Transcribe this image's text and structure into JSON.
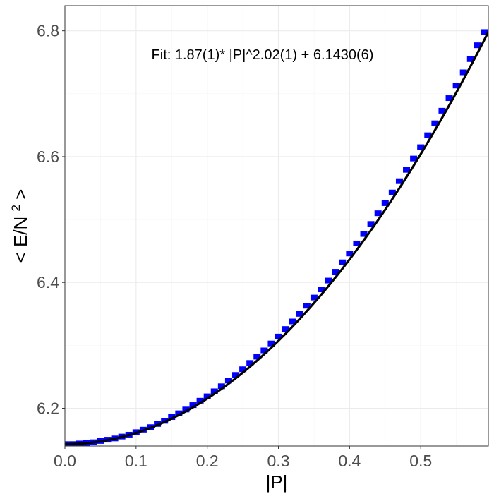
{
  "chart_data": {
    "type": "scatter",
    "annotation": "Fit: 1.87(1)* |P|^2.02(1) + 6.1430(6)",
    "xlabel": "|P|",
    "ylabel": {
      "prefix": "< E/N",
      "superscript": "2",
      "suffix": " >"
    },
    "xlim": [
      0.0,
      0.595
    ],
    "ylim": [
      6.14,
      6.84
    ],
    "x_ticks": [
      0.0,
      0.1,
      0.2,
      0.3,
      0.4,
      0.5
    ],
    "x_tick_labels": [
      "0.0",
      "0.1",
      "0.2",
      "0.3",
      "0.4",
      "0.5"
    ],
    "y_ticks": [
      6.2,
      6.4,
      6.6,
      6.8
    ],
    "y_tick_labels": [
      "6.2",
      "6.4",
      "6.6",
      "6.8"
    ],
    "grid": true,
    "legend": "none",
    "series": [
      {
        "kind": "data",
        "color": "#0000ff",
        "x": [
          0.0,
          0.01,
          0.02,
          0.03,
          0.04,
          0.05,
          0.06,
          0.07,
          0.08,
          0.09,
          0.1,
          0.11,
          0.12,
          0.13,
          0.14,
          0.15,
          0.16,
          0.17,
          0.18,
          0.19,
          0.2,
          0.21,
          0.22,
          0.23,
          0.24,
          0.25,
          0.26,
          0.27,
          0.28,
          0.29,
          0.3,
          0.31,
          0.32,
          0.33,
          0.34,
          0.35,
          0.36,
          0.37,
          0.38,
          0.39,
          0.4,
          0.41,
          0.42,
          0.43,
          0.44,
          0.45,
          0.46,
          0.47,
          0.48,
          0.49,
          0.5,
          0.51,
          0.52,
          0.53,
          0.54,
          0.55,
          0.56,
          0.57,
          0.58,
          0.59
        ],
        "y": [
          6.143,
          6.143,
          6.144,
          6.145,
          6.146,
          6.148,
          6.15,
          6.152,
          6.155,
          6.158,
          6.162,
          6.166,
          6.17,
          6.175,
          6.18,
          6.186,
          6.192,
          6.198,
          6.205,
          6.212,
          6.219,
          6.227,
          6.235,
          6.244,
          6.253,
          6.262,
          6.272,
          6.282,
          6.292,
          6.303,
          6.314,
          6.326,
          6.338,
          6.35,
          6.363,
          6.376,
          6.389,
          6.403,
          6.417,
          6.432,
          6.446,
          6.462,
          6.477,
          6.493,
          6.51,
          6.526,
          6.543,
          6.561,
          6.579,
          6.597,
          6.615,
          6.634,
          6.653,
          6.673,
          6.693,
          6.713,
          6.734,
          6.755,
          6.777,
          6.798
        ]
      },
      {
        "kind": "fit",
        "color": "#000000",
        "a": 1.87,
        "b": 2.02,
        "c": 6.143,
        "x_start": 0.0,
        "x_end": 0.6
      }
    ]
  }
}
